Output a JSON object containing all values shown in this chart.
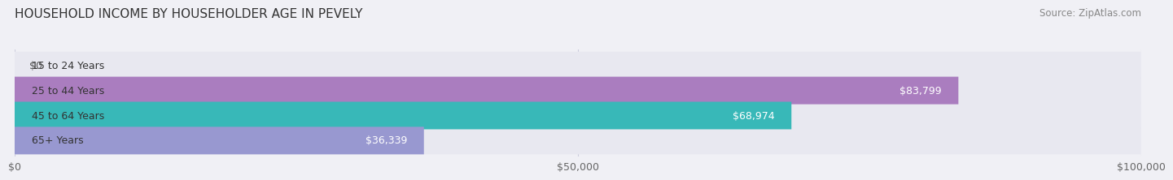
{
  "title": "HOUSEHOLD INCOME BY HOUSEHOLDER AGE IN PEVELY",
  "source": "Source: ZipAtlas.com",
  "categories": [
    "15 to 24 Years",
    "25 to 44 Years",
    "45 to 64 Years",
    "65+ Years"
  ],
  "values": [
    0,
    83799,
    68974,
    36339
  ],
  "labels": [
    "$0",
    "$83,799",
    "$68,974",
    "$36,339"
  ],
  "bar_colors": [
    "#a8c4e0",
    "#aa7dbf",
    "#38b8b8",
    "#9898d0"
  ],
  "track_color": "#e8e8f0",
  "xlim": [
    0,
    100000
  ],
  "xtick_values": [
    0,
    50000,
    100000
  ],
  "xtick_labels": [
    "$0",
    "$50,000",
    "$100,000"
  ],
  "background_color": "#f0f0f5",
  "title_fontsize": 11,
  "source_fontsize": 8.5,
  "label_fontsize": 9,
  "bar_height": 0.55,
  "bar_label_color_inside": "#ffffff",
  "bar_label_color_outside": "#555555",
  "grid_color": "#ccccdd"
}
